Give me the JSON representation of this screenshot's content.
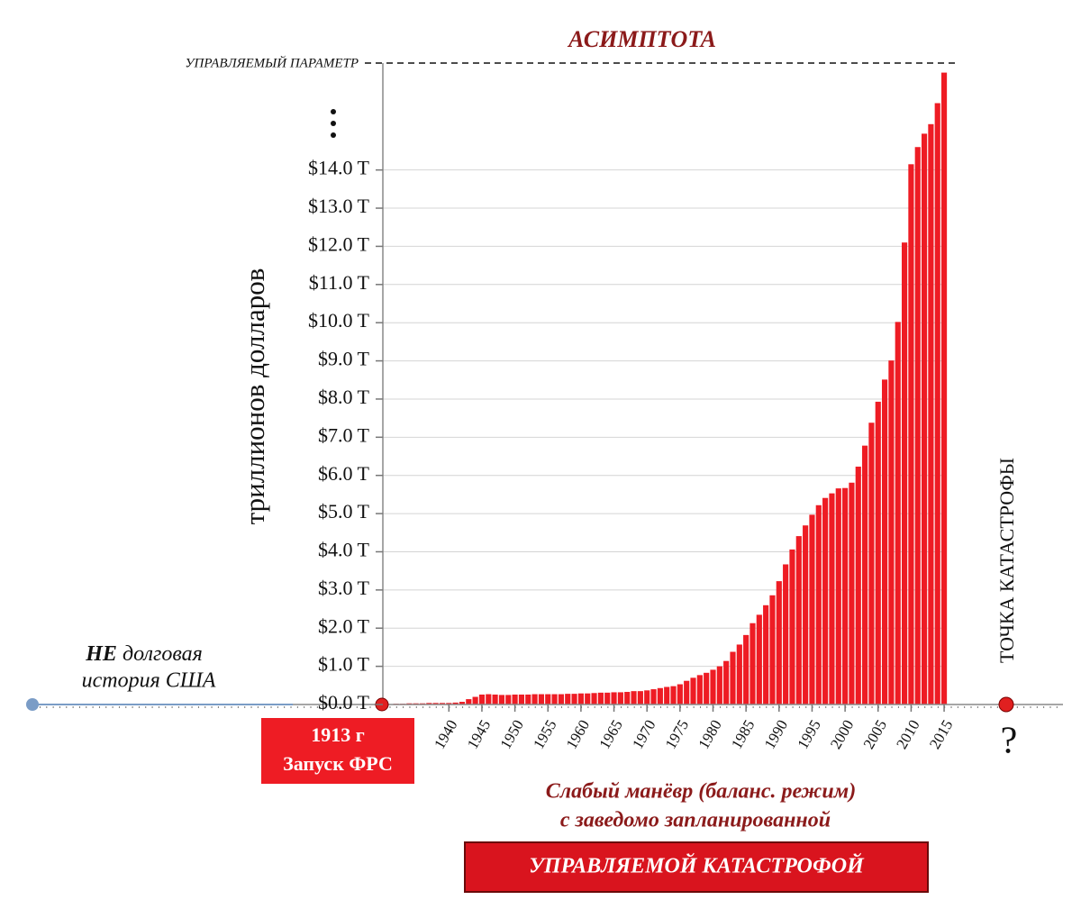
{
  "chart_data": {
    "type": "bar",
    "title": "АСИМПТОТА",
    "y_label": "триллионов долларов",
    "annotations": {
      "parameter": "УПРАВЛЯЕМЫЙ ПАРАМЕТР",
      "not_debt_bold": "НЕ",
      "not_debt_1": "долговая",
      "not_debt_2": "история США",
      "start_year": "1913 г",
      "start_event": "Запуск ФРС",
      "caption_1": "Слабый манёвр (баланс. режим)",
      "caption_2": "с  заведомо запланированной",
      "caption_box": "УПРАВЛЯЕМОЙ КАТАСТРОФОЙ",
      "catastrophe": "ТОЧКА КАТАСТРОФЫ",
      "question": "?"
    },
    "color": "#ee1c24",
    "x": [
      1932,
      1933,
      1934,
      1935,
      1936,
      1937,
      1938,
      1939,
      1940,
      1941,
      1942,
      1943,
      1944,
      1945,
      1946,
      1947,
      1948,
      1949,
      1950,
      1951,
      1952,
      1953,
      1954,
      1955,
      1956,
      1957,
      1958,
      1959,
      1960,
      1961,
      1962,
      1963,
      1964,
      1965,
      1966,
      1967,
      1968,
      1969,
      1970,
      1971,
      1972,
      1973,
      1974,
      1975,
      1976,
      1977,
      1978,
      1979,
      1980,
      1981,
      1982,
      1983,
      1984,
      1985,
      1986,
      1987,
      1988,
      1989,
      1990,
      1991,
      1992,
      1993,
      1994,
      1995,
      1996,
      1997,
      1998,
      1999,
      2000,
      2001,
      2002,
      2003,
      2004,
      2005,
      2006,
      2007,
      2008,
      2009,
      2010,
      2011,
      2012,
      2013,
      2014,
      2015
    ],
    "values": [
      0.02,
      0.02,
      0.03,
      0.03,
      0.03,
      0.04,
      0.04,
      0.04,
      0.04,
      0.05,
      0.07,
      0.14,
      0.2,
      0.26,
      0.27,
      0.26,
      0.25,
      0.25,
      0.26,
      0.26,
      0.26,
      0.27,
      0.27,
      0.27,
      0.27,
      0.27,
      0.28,
      0.28,
      0.29,
      0.29,
      0.3,
      0.31,
      0.31,
      0.32,
      0.32,
      0.33,
      0.35,
      0.35,
      0.37,
      0.4,
      0.43,
      0.46,
      0.48,
      0.53,
      0.62,
      0.7,
      0.77,
      0.83,
      0.91,
      1.0,
      1.14,
      1.38,
      1.57,
      1.82,
      2.13,
      2.35,
      2.6,
      2.86,
      3.23,
      3.67,
      4.06,
      4.41,
      4.69,
      4.97,
      5.22,
      5.41,
      5.53,
      5.66,
      5.67,
      5.81,
      6.23,
      6.78,
      7.38,
      7.93,
      8.51,
      9.01,
      10.02,
      12.1,
      14.15,
      14.6,
      14.95,
      15.2,
      15.75,
      16.55
    ],
    "xlim": [
      1930,
      2033
    ],
    "xticks": [
      1940,
      1945,
      1950,
      1955,
      1960,
      1965,
      1970,
      1975,
      1980,
      1985,
      1990,
      1995,
      2000,
      2005,
      2010,
      2015
    ],
    "ylim": [
      0,
      16.8
    ],
    "yticks": [
      {
        "value": 0,
        "label": "$0.0 T"
      },
      {
        "value": 1,
        "label": "$1.0 T"
      },
      {
        "value": 2,
        "label": "$2.0 T"
      },
      {
        "value": 3,
        "label": "$3.0 T"
      },
      {
        "value": 4,
        "label": "$4.0 T"
      },
      {
        "value": 5,
        "label": "$5.0 T"
      },
      {
        "value": 6,
        "label": "$6.0 T"
      },
      {
        "value": 7,
        "label": "$7.0 T"
      },
      {
        "value": 8,
        "label": "$8.0 T"
      },
      {
        "value": 9,
        "label": "$9.0 T"
      },
      {
        "value": 10,
        "label": "$10.0 T"
      },
      {
        "value": 11,
        "label": "$11.0 T"
      },
      {
        "value": 12,
        "label": "$12.0 T"
      },
      {
        "value": 13,
        "label": "$13.0 T"
      },
      {
        "value": 14,
        "label": "$14.0 T"
      }
    ],
    "grid": true
  }
}
